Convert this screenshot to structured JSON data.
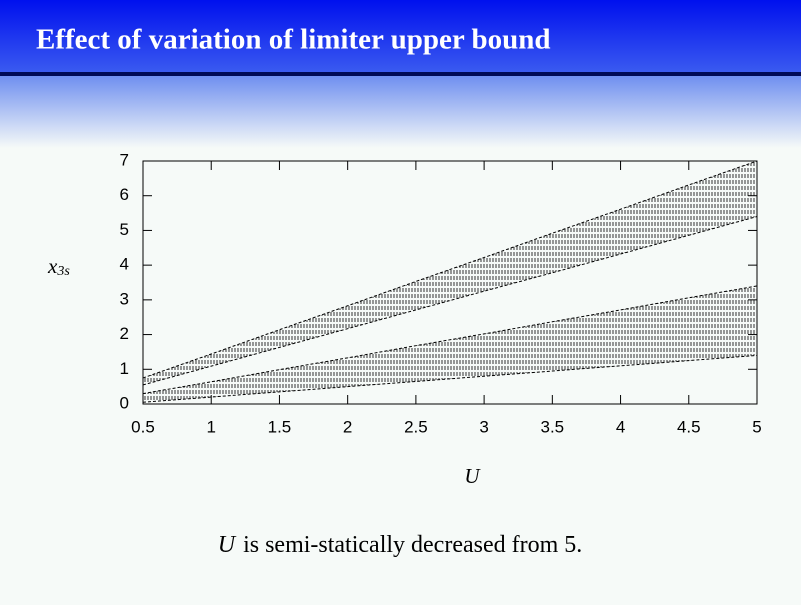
{
  "header": {
    "title": "Effect of variation of limiter upper bound"
  },
  "chart_data": {
    "type": "band",
    "x": [
      0.5,
      1,
      1.5,
      2,
      2.5,
      3,
      3.5,
      4,
      4.5,
      5
    ],
    "series": [
      {
        "color": "#000000",
        "low": [
          0.55,
          1.09,
          1.63,
          2.17,
          2.71,
          3.25,
          3.78,
          4.32,
          4.86,
          5.4
        ],
        "high": [
          0.75,
          1.44,
          2.14,
          2.83,
          3.53,
          4.22,
          4.92,
          5.61,
          6.31,
          7.0
        ]
      },
      {
        "color": "#000000",
        "low": [
          0.05,
          0.2,
          0.35,
          0.5,
          0.65,
          0.8,
          0.95,
          1.1,
          1.25,
          1.4
        ],
        "high": [
          0.3,
          0.64,
          0.99,
          1.33,
          1.68,
          2.02,
          2.37,
          2.71,
          3.06,
          3.4
        ]
      }
    ],
    "xlim": [
      0.5,
      5
    ],
    "xticks": [
      0.5,
      1,
      1.5,
      2,
      2.5,
      3,
      3.5,
      4,
      4.5,
      5
    ],
    "ylim": [
      0,
      7
    ],
    "yticks": [
      0,
      1,
      2,
      3,
      4,
      5,
      6,
      7
    ],
    "y_label": "x",
    "y_label_sub": "3s",
    "x_label": "U"
  },
  "caption": {
    "variable": "U",
    "text": "is semi-statically decreased from 5."
  }
}
